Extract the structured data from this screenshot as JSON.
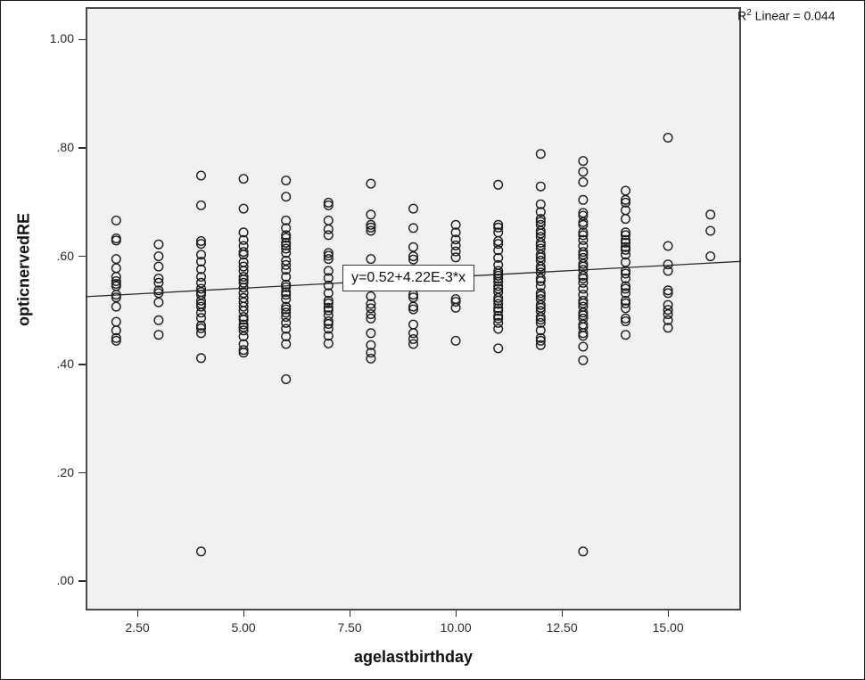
{
  "figure": {
    "background": "#ffffff",
    "plot_bg": "#f1f1ef",
    "frame_color": "#4a4a4a",
    "point_color": "#1c1c1c",
    "line_color": "#2b2b2b"
  },
  "annotations": {
    "r2_base": "R",
    "r2_sup": "2",
    "r2_rest": " Linear = 0.044",
    "equation": "y=0.52+4.22E-3*x"
  },
  "chart_data": {
    "type": "scatter",
    "title": "",
    "xlabel": "agelastbirthday",
    "ylabel": "opticnervedRE",
    "xlim": [
      1.28,
      16.72
    ],
    "ylim": [
      -0.054,
      1.06
    ],
    "grid": false,
    "x_ticks": [
      {
        "value": 2.5,
        "label": "2.50"
      },
      {
        "value": 5.0,
        "label": "5.00"
      },
      {
        "value": 7.5,
        "label": "7.50"
      },
      {
        "value": 10.0,
        "label": "10.00"
      },
      {
        "value": 12.5,
        "label": "12.50"
      },
      {
        "value": 15.0,
        "label": "15.00"
      }
    ],
    "y_ticks": [
      {
        "value": 0.0,
        "label": ".00"
      },
      {
        "value": 0.2,
        "label": ".20"
      },
      {
        "value": 0.4,
        "label": ".40"
      },
      {
        "value": 0.6,
        "label": ".60"
      },
      {
        "value": 0.8,
        "label": ".80"
      },
      {
        "value": 1.0,
        "label": "1.00"
      }
    ],
    "regression": {
      "intercept": 0.52,
      "slope": 0.00422,
      "label": "y=0.52+4.22E-3*x",
      "r2": 0.044
    },
    "columns": [
      {
        "x": 2,
        "ys": [
          0.666,
          0.633,
          0.629,
          0.595,
          0.578,
          0.562,
          0.554,
          0.549,
          0.545,
          0.529,
          0.524,
          0.507,
          0.479,
          0.463,
          0.449,
          0.444
        ]
      },
      {
        "x": 3,
        "ys": [
          0.622,
          0.6,
          0.581,
          0.559,
          0.551,
          0.537,
          0.532,
          0.515,
          0.482,
          0.455
        ]
      },
      {
        "x": 4,
        "ys": [
          0.749,
          0.694,
          0.628,
          0.623,
          0.603,
          0.59,
          0.576,
          0.562,
          0.551,
          0.54,
          0.534,
          0.529,
          0.518,
          0.512,
          0.507,
          0.496,
          0.486,
          0.472,
          0.467,
          0.458,
          0.412,
          0.055
        ]
      },
      {
        "x": 5,
        "ys": [
          0.743,
          0.688,
          0.644,
          0.63,
          0.619,
          0.608,
          0.603,
          0.589,
          0.581,
          0.573,
          0.562,
          0.557,
          0.551,
          0.542,
          0.532,
          0.523,
          0.515,
          0.507,
          0.499,
          0.488,
          0.483,
          0.474,
          0.469,
          0.463,
          0.452,
          0.438,
          0.427,
          0.422
        ]
      },
      {
        "x": 6,
        "ys": [
          0.74,
          0.71,
          0.666,
          0.652,
          0.639,
          0.634,
          0.625,
          0.62,
          0.614,
          0.606,
          0.592,
          0.584,
          0.575,
          0.562,
          0.548,
          0.543,
          0.534,
          0.529,
          0.521,
          0.507,
          0.502,
          0.496,
          0.488,
          0.477,
          0.466,
          0.452,
          0.438,
          0.373
        ]
      },
      {
        "x": 7,
        "ys": [
          0.699,
          0.694,
          0.666,
          0.65,
          0.639,
          0.606,
          0.601,
          0.595,
          0.573,
          0.56,
          0.546,
          0.532,
          0.518,
          0.513,
          0.505,
          0.5,
          0.491,
          0.48,
          0.475,
          0.466,
          0.453,
          0.439
        ]
      },
      {
        "x": 8,
        "ys": [
          0.734,
          0.677,
          0.658,
          0.653,
          0.647,
          0.595,
          0.526,
          0.512,
          0.504,
          0.493,
          0.485,
          0.458,
          0.436,
          0.422,
          0.411
        ]
      },
      {
        "x": 9,
        "ys": [
          0.688,
          0.652,
          0.617,
          0.6,
          0.594,
          0.529,
          0.524,
          0.507,
          0.502,
          0.474,
          0.458,
          0.447,
          0.438
        ]
      },
      {
        "x": 10,
        "ys": [
          0.658,
          0.644,
          0.631,
          0.62,
          0.609,
          0.598,
          0.521,
          0.516,
          0.505,
          0.444
        ]
      },
      {
        "x": 11,
        "ys": [
          0.732,
          0.658,
          0.653,
          0.644,
          0.628,
          0.623,
          0.611,
          0.597,
          0.584,
          0.573,
          0.568,
          0.564,
          0.559,
          0.553,
          0.545,
          0.54,
          0.534,
          0.523,
          0.518,
          0.512,
          0.504,
          0.499,
          0.49,
          0.485,
          0.477,
          0.466,
          0.43
        ]
      },
      {
        "x": 12,
        "ys": [
          0.789,
          0.729,
          0.696,
          0.682,
          0.669,
          0.664,
          0.658,
          0.647,
          0.642,
          0.636,
          0.625,
          0.62,
          0.614,
          0.603,
          0.598,
          0.592,
          0.581,
          0.576,
          0.57,
          0.559,
          0.554,
          0.545,
          0.532,
          0.527,
          0.521,
          0.51,
          0.505,
          0.499,
          0.488,
          0.483,
          0.477,
          0.463,
          0.449,
          0.444,
          0.436
        ]
      },
      {
        "x": 13,
        "ys": [
          0.776,
          0.756,
          0.737,
          0.704,
          0.68,
          0.675,
          0.663,
          0.658,
          0.644,
          0.639,
          0.63,
          0.619,
          0.608,
          0.603,
          0.597,
          0.586,
          0.581,
          0.575,
          0.564,
          0.559,
          0.551,
          0.54,
          0.529,
          0.518,
          0.513,
          0.507,
          0.496,
          0.491,
          0.485,
          0.474,
          0.469,
          0.458,
          0.453,
          0.433,
          0.408,
          0.055
        ]
      },
      {
        "x": 14,
        "ys": [
          0.721,
          0.704,
          0.699,
          0.685,
          0.669,
          0.644,
          0.639,
          0.63,
          0.625,
          0.617,
          0.612,
          0.603,
          0.589,
          0.573,
          0.568,
          0.559,
          0.545,
          0.54,
          0.532,
          0.518,
          0.513,
          0.504,
          0.485,
          0.48,
          0.455
        ]
      },
      {
        "x": 15,
        "ys": [
          0.819,
          0.619,
          0.585,
          0.573,
          0.537,
          0.532,
          0.51,
          0.501,
          0.493,
          0.482,
          0.468
        ]
      },
      {
        "x": 16,
        "ys": [
          0.677,
          0.647,
          0.6
        ]
      }
    ]
  }
}
